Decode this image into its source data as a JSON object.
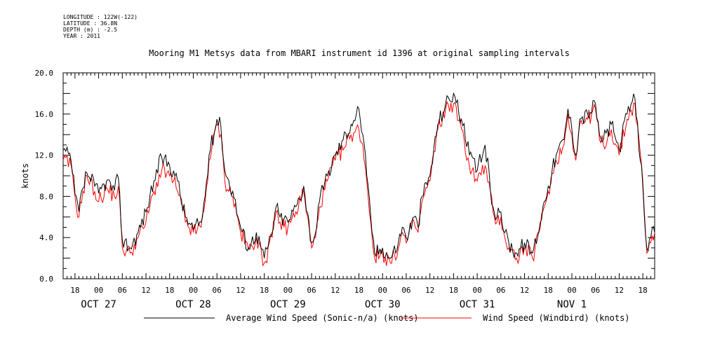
{
  "header": {
    "longitude": "LONGITUDE : 122W(-122)",
    "latitude": "LATITUDE : 36.8N",
    "depth": "DEPTH (m) : -2.5",
    "year": "YEAR : 2011"
  },
  "chart_data": {
    "type": "line",
    "title": "Mooring M1 Metsys data from MBARI instrument id 1396 at original sampling intervals",
    "ylabel": "knots",
    "xlabel": "",
    "ylim": [
      0,
      20
    ],
    "xlim_hours": [
      -9,
      141
    ],
    "yticks": [
      "0.0",
      "4.0",
      "8.0",
      "12.0",
      "16.0",
      "20.0"
    ],
    "x_hour_labels": [
      "18",
      "00",
      "06",
      "12",
      "18",
      "00",
      "06",
      "12",
      "18",
      "00",
      "06",
      "12",
      "18",
      "00",
      "06",
      "12",
      "18",
      "00",
      "06",
      "12",
      "18",
      "00",
      "06",
      "12",
      "18"
    ],
    "date_labels": [
      "OCT 27",
      "OCT 28",
      "OCT 29",
      "OCT 30",
      "OCT 31",
      "NOV  1"
    ],
    "grid": false,
    "legend_position": "bottom",
    "colors": {
      "sonic": "#000000",
      "windbird": "#ff0000"
    },
    "series": [
      {
        "name": "Average Wind Speed (Sonic-n/a) (knots)",
        "color": "#000000",
        "x": [
          -9,
          -7,
          -6,
          -5,
          -4,
          -3,
          -1,
          0,
          2,
          4,
          5,
          6,
          8,
          10,
          12,
          13,
          14,
          16,
          18,
          19,
          20,
          22,
          24,
          26,
          27,
          28,
          30,
          31,
          32,
          34,
          36,
          38,
          40,
          42,
          44,
          45,
          46,
          47,
          48,
          50,
          52,
          54,
          55,
          56,
          58,
          60,
          62,
          64,
          66,
          67,
          68,
          69,
          70,
          72,
          74,
          76,
          77,
          78,
          80,
          81,
          82,
          84,
          86,
          88,
          90,
          92,
          94,
          96,
          98,
          100,
          101,
          102,
          103,
          104,
          106,
          108,
          110,
          112,
          113,
          114,
          116,
          118,
          119,
          120,
          121,
          122,
          124,
          126,
          127,
          128,
          130,
          132,
          134,
          136,
          138,
          139,
          140,
          141
        ],
        "y": [
          12.5,
          11.5,
          8.2,
          6.5,
          8.8,
          10.3,
          9.0,
          8.3,
          9.5,
          8.6,
          9.8,
          3.8,
          3.0,
          4.5,
          6.5,
          8.0,
          9.5,
          11.8,
          11.0,
          10.5,
          9.5,
          6.0,
          4.8,
          5.5,
          8.0,
          12.0,
          15.5,
          14.8,
          10.5,
          8.5,
          5.0,
          3.0,
          4.5,
          2.0,
          4.5,
          7.0,
          6.0,
          5.8,
          5.5,
          7.0,
          9.0,
          3.5,
          4.5,
          7.5,
          10.0,
          12.0,
          13.5,
          15.0,
          16.5,
          14.0,
          10.0,
          6.0,
          2.5,
          3.0,
          2.0,
          3.5,
          5.0,
          4.0,
          6.0,
          5.0,
          8.0,
          10.0,
          15.0,
          17.0,
          18.0,
          15.5,
          12.0,
          10.5,
          13.0,
          7.0,
          6.0,
          6.5,
          4.5,
          3.5,
          2.5,
          3.5,
          2.5,
          5.5,
          7.5,
          9.0,
          12.0,
          13.5,
          16.5,
          14.5,
          12.0,
          15.5,
          16.0,
          17.0,
          14.0,
          13.5,
          15.0,
          12.5,
          16.0,
          17.5,
          9.0,
          3.0,
          4.0,
          4.5
        ]
      },
      {
        "name": "Wind Speed (Windbird) (knots)",
        "color": "#ff0000",
        "x": [
          -9,
          -7,
          -6,
          -5,
          -4,
          -3,
          -1,
          0,
          2,
          4,
          5,
          6,
          8,
          10,
          12,
          13,
          14,
          16,
          18,
          19,
          20,
          22,
          24,
          26,
          27,
          28,
          30,
          31,
          32,
          34,
          36,
          38,
          40,
          42,
          44,
          45,
          46,
          47,
          48,
          50,
          52,
          54,
          55,
          56,
          58,
          60,
          62,
          64,
          66,
          67,
          68,
          69,
          70,
          72,
          74,
          76,
          77,
          78,
          80,
          81,
          82,
          84,
          86,
          88,
          90,
          92,
          94,
          96,
          98,
          100,
          101,
          102,
          103,
          104,
          106,
          108,
          110,
          112,
          113,
          114,
          116,
          118,
          119,
          120,
          121,
          122,
          124,
          126,
          127,
          128,
          130,
          132,
          134,
          136,
          138,
          139,
          140,
          141
        ],
        "y": [
          11.5,
          11.0,
          8.0,
          6.0,
          8.5,
          10.0,
          8.5,
          7.5,
          8.8,
          8.0,
          9.0,
          3.0,
          2.5,
          4.0,
          5.5,
          7.0,
          8.5,
          10.5,
          10.0,
          9.5,
          8.5,
          5.5,
          4.5,
          5.0,
          7.5,
          11.5,
          15.0,
          14.0,
          9.5,
          8.0,
          4.5,
          2.8,
          4.0,
          1.5,
          4.0,
          6.5,
          5.5,
          5.0,
          5.0,
          6.5,
          8.5,
          3.0,
          4.0,
          7.0,
          9.5,
          11.5,
          12.5,
          14.0,
          14.5,
          13.0,
          9.5,
          5.5,
          2.0,
          2.5,
          1.5,
          3.0,
          4.5,
          3.5,
          5.5,
          4.5,
          7.5,
          9.5,
          14.5,
          16.5,
          17.0,
          14.5,
          11.0,
          9.5,
          11.0,
          6.5,
          5.5,
          6.0,
          4.0,
          3.0,
          2.0,
          3.0,
          2.0,
          5.0,
          7.0,
          8.5,
          11.5,
          13.0,
          16.0,
          14.0,
          11.5,
          15.0,
          15.5,
          16.5,
          13.5,
          13.0,
          14.5,
          12.0,
          15.5,
          17.0,
          9.5,
          2.5,
          3.5,
          4.5
        ]
      }
    ]
  }
}
